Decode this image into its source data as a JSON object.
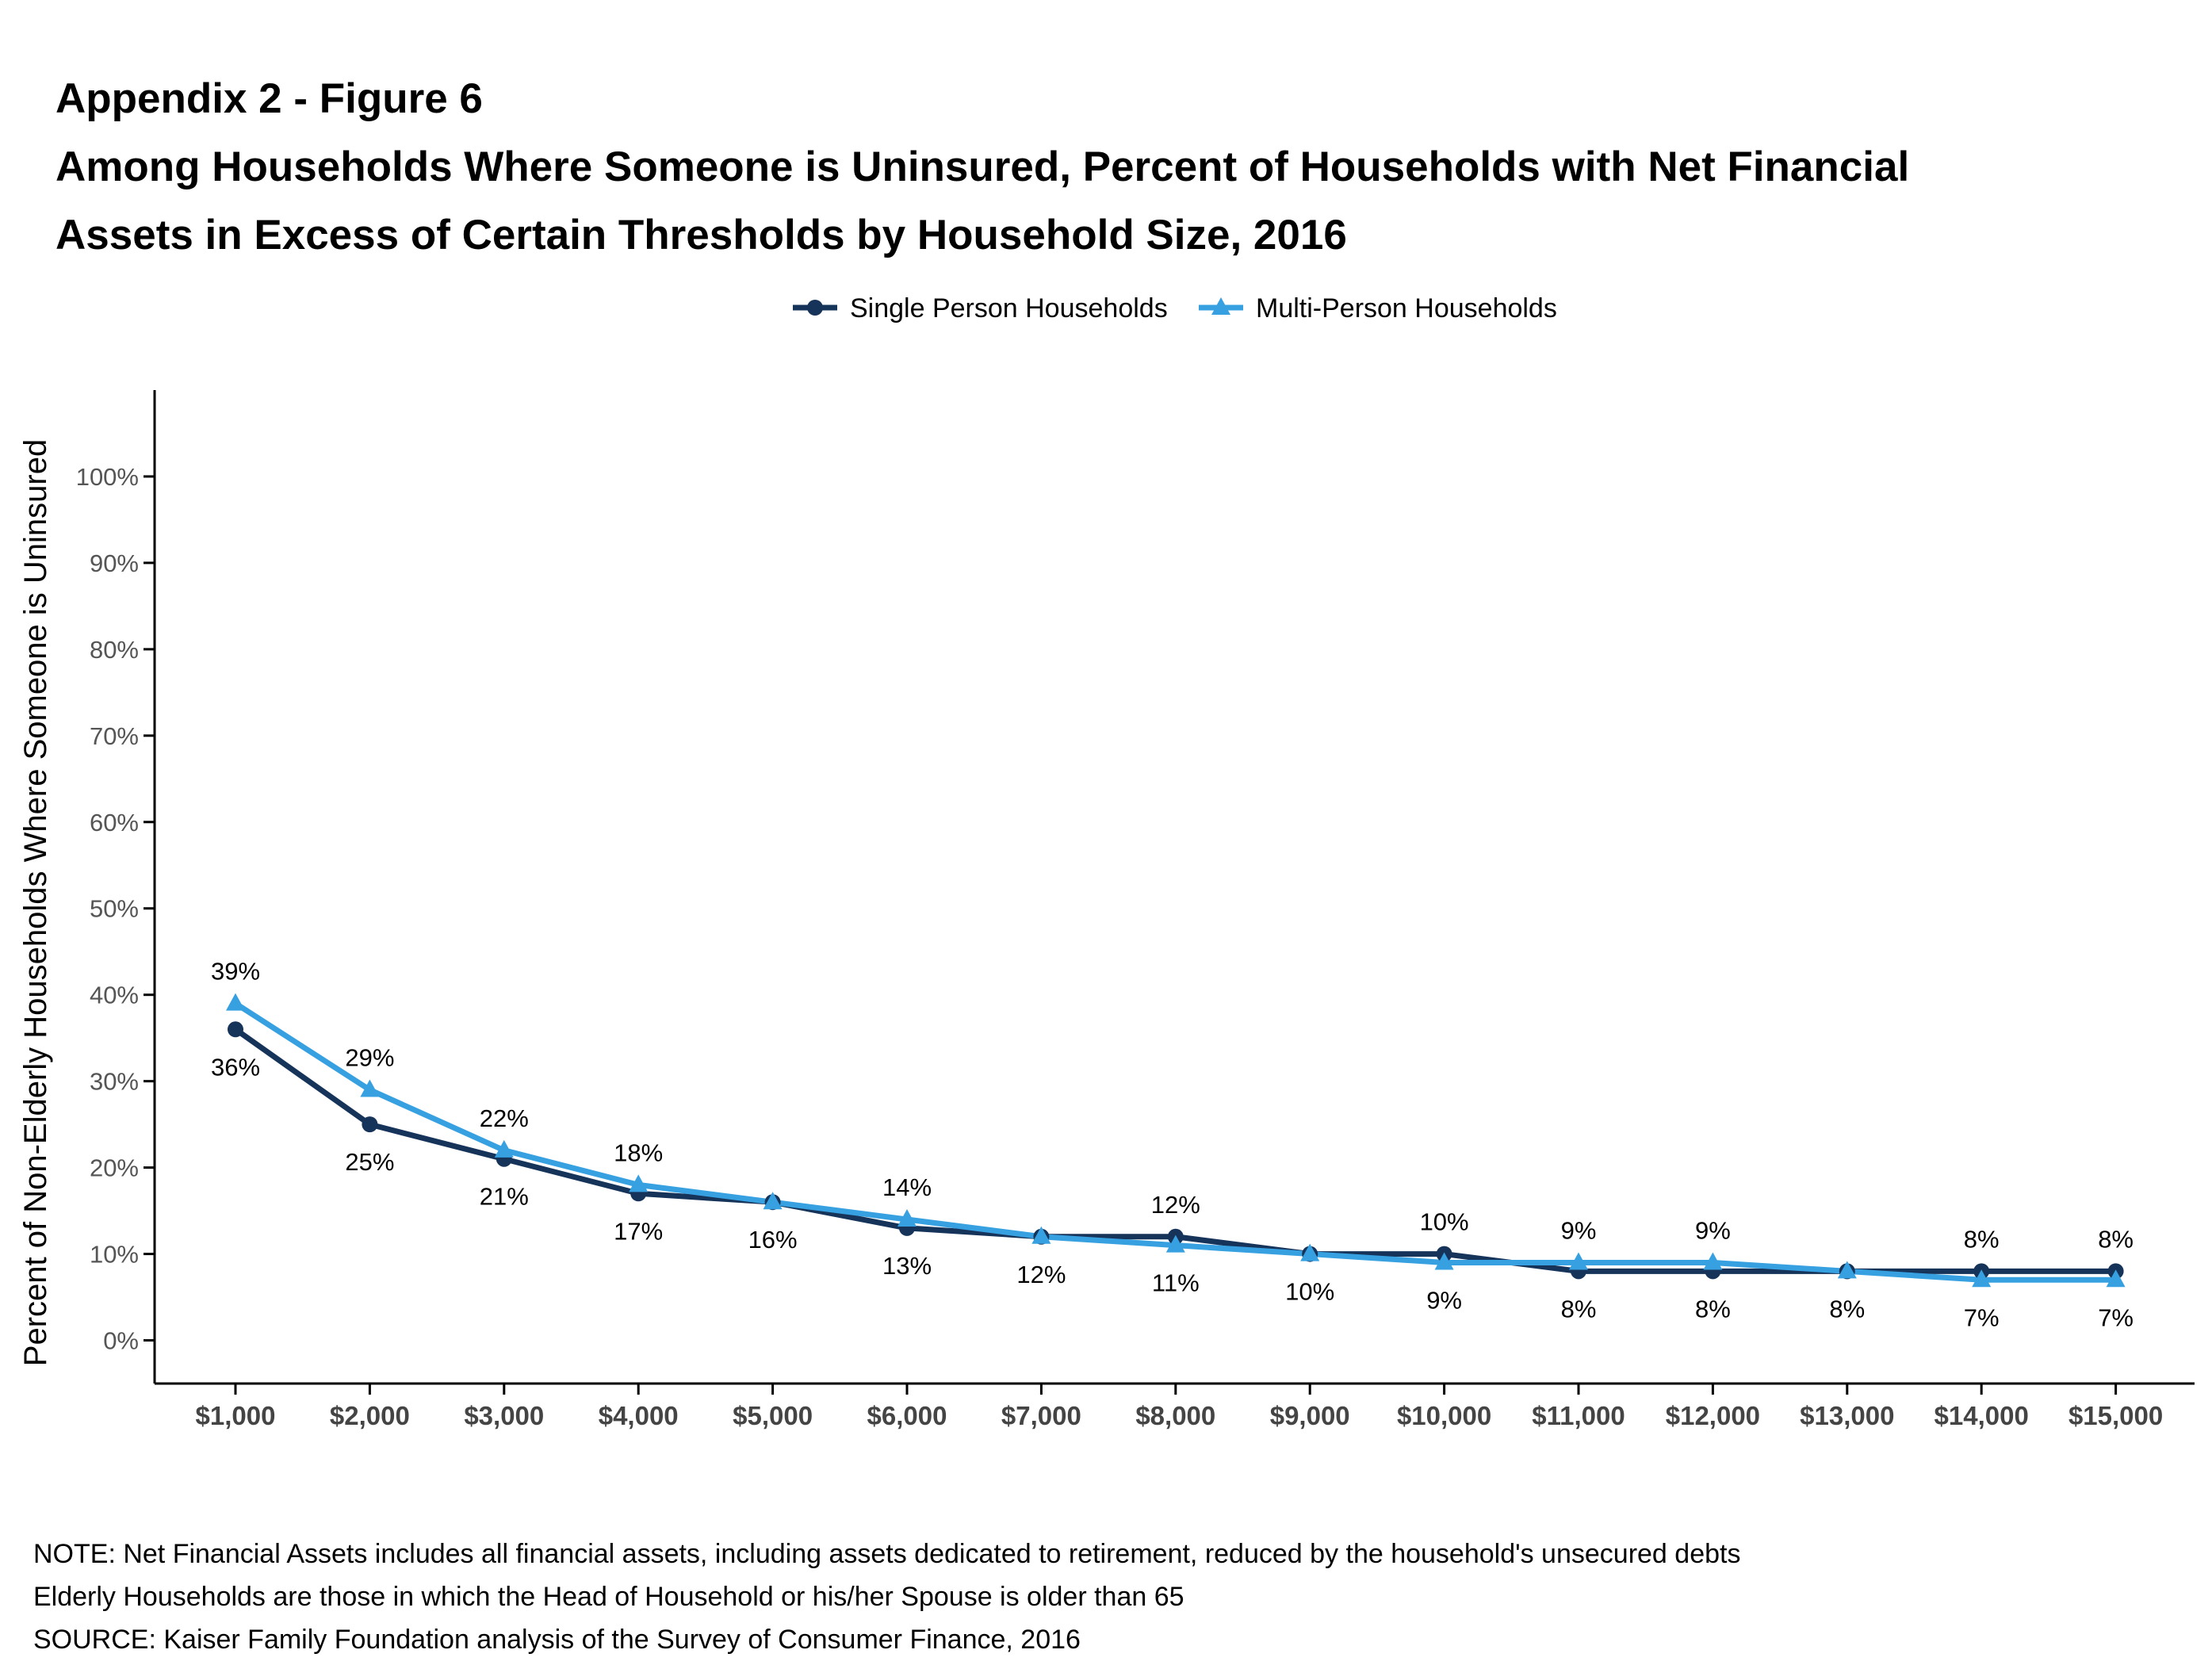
{
  "figure": {
    "title_lines": [
      "Appendix 2 - Figure 6",
      "Among Households Where Someone is Uninsured, Percent of Households with Net Financial",
      "Assets in Excess of Certain Thresholds by Household Size, 2016"
    ],
    "notes": [
      "NOTE: Net Financial Assets includes all financial assets, including assets dedicated to retirement, reduced by the household's unsecured debts",
      "Elderly Households are those in which the Head of Household or his/her Spouse is older than 65",
      "SOURCE: Kaiser Family Foundation analysis of the Survey of Consumer Finance, 2016"
    ]
  },
  "colors": {
    "single": "#16335a",
    "multi": "#36a0e0",
    "axis": "#000000",
    "tick_label": "#555555"
  },
  "chart_data": {
    "type": "line",
    "title": "Among Households Where Someone is Uninsured, Percent of Households with Net Financial Assets in Excess of Certain Thresholds by Household Size, 2016",
    "xlabel": "",
    "ylabel": "Percent of Non-Elderly Households Where Someone is Uninsured",
    "categories": [
      "$1,000",
      "$2,000",
      "$3,000",
      "$4,000",
      "$5,000",
      "$6,000",
      "$7,000",
      "$8,000",
      "$9,000",
      "$10,000",
      "$11,000",
      "$12,000",
      "$13,000",
      "$14,000",
      "$15,000"
    ],
    "yticks": [
      "0%",
      "10%",
      "20%",
      "30%",
      "40%",
      "50%",
      "60%",
      "70%",
      "80%",
      "90%",
      "100%"
    ],
    "ylim": [
      -5,
      110
    ],
    "grid": false,
    "legend_position": "top-center",
    "series": [
      {
        "name": "Single Person Households",
        "marker": "circle",
        "values": [
          36,
          25,
          21,
          17,
          16,
          13,
          12,
          12,
          10,
          10,
          8,
          8,
          8,
          8,
          8
        ],
        "labels": [
          "36%",
          "25%",
          "21%",
          "17%",
          "16%",
          "13%",
          "12%",
          "12%",
          "10%",
          "10%",
          "8%",
          "8%",
          "8%",
          "8%",
          "8%"
        ]
      },
      {
        "name": "Multi-Person Households",
        "marker": "triangle",
        "values": [
          39,
          29,
          22,
          18,
          16,
          14,
          12,
          11,
          10,
          9,
          9,
          9,
          8,
          7,
          7
        ],
        "labels": [
          "39%",
          "29%",
          "22%",
          "18%",
          "",
          "14%",
          "",
          "11%",
          "",
          "9%",
          "9%",
          "9%",
          "",
          "7%",
          "7%"
        ]
      }
    ]
  }
}
